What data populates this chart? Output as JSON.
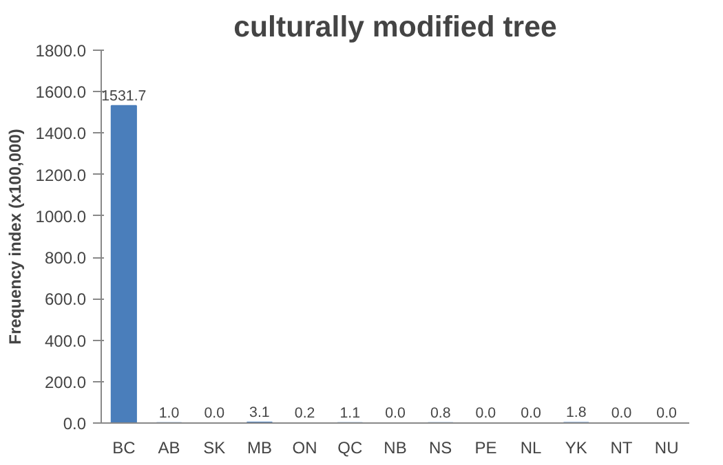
{
  "chart_data": {
    "type": "bar",
    "title": "culturally modified tree",
    "ylabel": "Frequency index (x100,000)",
    "categories": [
      "BC",
      "AB",
      "SK",
      "MB",
      "ON",
      "QC",
      "NB",
      "NS",
      "PE",
      "NL",
      "YK",
      "NT",
      "NU"
    ],
    "values": [
      1531.7,
      1.0,
      0.0,
      3.1,
      0.2,
      1.1,
      0.0,
      0.8,
      0.0,
      0.0,
      1.8,
      0.0,
      0.0
    ],
    "value_labels": [
      "1531.7",
      "1.0",
      "0.0",
      "3.1",
      "0.2",
      "1.1",
      "0.0",
      "0.8",
      "0.0",
      "0.0",
      "1.8",
      "0.0",
      "0.0"
    ],
    "color": "#4a7ebb",
    "ylim": [
      0,
      1800
    ],
    "yticks": [
      {
        "value": 0,
        "label": "0.0"
      },
      {
        "value": 200,
        "label": "200.0"
      },
      {
        "value": 400,
        "label": "400.0"
      },
      {
        "value": 600,
        "label": "600.0"
      },
      {
        "value": 800,
        "label": "800.0"
      },
      {
        "value": 1000,
        "label": "1000.0"
      },
      {
        "value": 1200,
        "label": "1200.0"
      },
      {
        "value": 1400,
        "label": "1400.0"
      },
      {
        "value": 1600,
        "label": "1600.0"
      },
      {
        "value": 1800,
        "label": "1800.0"
      }
    ],
    "grid": false
  }
}
